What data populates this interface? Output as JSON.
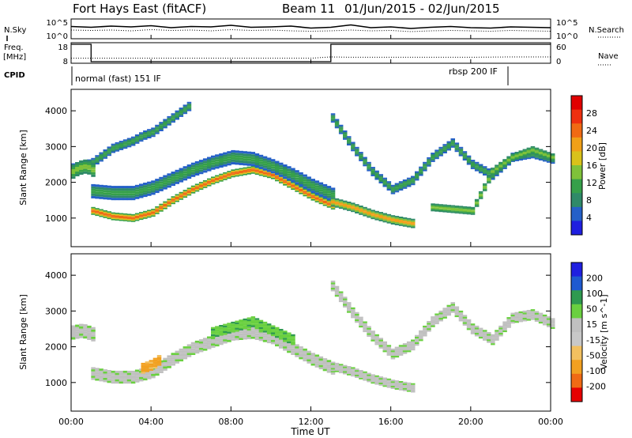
{
  "header": {
    "station": "Fort Hays East (fitACF)",
    "beam": "Beam 11",
    "date_range": "01/Jun/2015 - 02/Jun/2015"
  },
  "colors": {
    "power_scale": [
      "#1f1fe0",
      "#2560c8",
      "#2f8a68",
      "#36a04a",
      "#7fc23a",
      "#d9c21a",
      "#f0a018",
      "#f06a14",
      "#ee3010",
      "#e00000"
    ],
    "velocity_scale": [
      "#e60000",
      "#f06a14",
      "#f2a020",
      "#f2c060",
      "#c8c8c8",
      "#c0c0c0",
      "#6ad040",
      "#2f9a50",
      "#1f5ad0",
      "#1f1fe0"
    ]
  },
  "chart_data": [
    {
      "type": "line",
      "panel": "noise",
      "series": [
        {
          "name": "N.Sky",
          "style": "solid",
          "values": [
            3.1,
            2.9,
            3.2,
            3.0,
            3.3,
            2.8,
            3.1,
            3.0,
            3.4,
            2.9,
            3.0,
            3.2,
            2.7,
            2.9,
            3.5,
            2.8,
            3.0,
            2.6,
            2.9,
            3.1,
            2.8,
            2.7,
            3.0,
            2.9,
            2.8
          ]
        },
        {
          "name": "N.Search",
          "style": "dotted",
          "values": [
            2.2,
            2.1,
            2.2,
            2.0,
            2.3,
            2.1,
            2.2,
            2.0,
            2.3,
            2.1,
            2.2,
            2.0,
            1.9,
            2.0,
            2.2,
            2.0,
            2.1,
            1.8,
            2.0,
            2.1,
            2.0,
            1.9,
            2.1,
            2.0,
            1.9
          ]
        }
      ],
      "x_hours": [
        0,
        1,
        2,
        3,
        4,
        5,
        6,
        7,
        8,
        9,
        10,
        11,
        12,
        13,
        14,
        15,
        16,
        17,
        18,
        19,
        20,
        21,
        22,
        23,
        24
      ],
      "yticks_left": [
        "10^5",
        "10^0"
      ],
      "yticks_right": [
        "10^5",
        "10^0"
      ],
      "labels": {
        "left": "N.Sky",
        "right": "N.Search"
      }
    },
    {
      "type": "line",
      "panel": "frequency",
      "series": [
        {
          "name": "Freq. [MHz]",
          "style": "solid",
          "x_hours": [
            0,
            1.0,
            1.0,
            13.0,
            13.0,
            24
          ],
          "values": [
            18,
            18,
            8,
            8,
            18,
            18
          ]
        },
        {
          "name": "Nave",
          "style": "dotted",
          "x_hours": [
            0,
            2,
            4,
            6,
            8,
            10,
            12,
            13,
            14,
            16,
            18,
            20,
            22,
            24
          ],
          "values": [
            16,
            16,
            16,
            16,
            16,
            16,
            16,
            20,
            19,
            19,
            19,
            19,
            20,
            20
          ]
        }
      ],
      "labels": {
        "freq": "Freq.",
        "freq_unit": "[MHz]",
        "nave": "Nave",
        "cpid": "CPID"
      },
      "yticks_left": [
        "18",
        "8"
      ],
      "yticks_right": [
        "60",
        "0"
      ]
    },
    {
      "type": "table",
      "panel": "cpid",
      "modes": [
        {
          "start": 0,
          "end": 22.0,
          "label": "normal (fast) 151 IF"
        },
        {
          "start": 22.0,
          "end": 24,
          "label": "rbsp 200 IF"
        }
      ]
    },
    {
      "type": "heatmap",
      "panel": "power",
      "ylabel": "Slant Range [km]",
      "ylim": [
        200,
        4600
      ],
      "yticks": [
        1000,
        2000,
        3000,
        4000
      ],
      "colorbar_label": "Power [dB]",
      "colorbar_ticks": [
        4,
        8,
        12,
        16,
        20,
        24,
        28
      ],
      "bands": [
        {
          "t": [
            1,
            2,
            3,
            4,
            5,
            6,
            7,
            8,
            9,
            10,
            11,
            12,
            13
          ],
          "r": [
            1200,
            1050,
            1000,
            1150,
            1500,
            1800,
            2050,
            2250,
            2350,
            2200,
            1900,
            1600,
            1350
          ],
          "w": 220,
          "lvl": 26
        },
        {
          "t": [
            1,
            2,
            3,
            4,
            5,
            6,
            7,
            8,
            9,
            10,
            11,
            12,
            13
          ],
          "r": [
            1750,
            1700,
            1700,
            1850,
            2100,
            2350,
            2550,
            2700,
            2650,
            2450,
            2200,
            1900,
            1650
          ],
          "w": 400,
          "lvl": 12
        },
        {
          "t": [
            0,
            0.5,
            1,
            1.5,
            2,
            2.5,
            3,
            3.5,
            4,
            4.5,
            5,
            6
          ],
          "r": [
            2400,
            2450,
            2550,
            2750,
            2950,
            3050,
            3150,
            3300,
            3400,
            3600,
            3800,
            4200
          ],
          "w": 260,
          "lvl": 10
        },
        {
          "t": [
            0,
            0.3,
            0.7,
            1.0
          ],
          "r": [
            2300,
            2400,
            2450,
            2350
          ],
          "w": 400,
          "lvl": 16
        },
        {
          "t": [
            13,
            14,
            15,
            16,
            17
          ],
          "r": [
            1450,
            1300,
            1100,
            950,
            850
          ],
          "w": 260,
          "lvl": 20
        },
        {
          "t": [
            13,
            14,
            15,
            16,
            17,
            18,
            19,
            20,
            21,
            22,
            23,
            24
          ],
          "r": [
            3800,
            3000,
            2300,
            1800,
            2050,
            2700,
            3100,
            2500,
            2200,
            2700,
            2800,
            2650
          ],
          "w": 260,
          "lvl": 10
        },
        {
          "t": [
            18,
            19,
            20,
            21,
            22,
            23,
            24
          ],
          "r": [
            1300,
            1250,
            1200,
            2300,
            2700,
            2900,
            2700
          ],
          "w": 220,
          "lvl": 16
        }
      ]
    },
    {
      "type": "heatmap",
      "panel": "velocity",
      "ylabel": "Slant Range [km]",
      "xlabel": "Time UT",
      "ylim": [
        200,
        4600
      ],
      "yticks": [
        1000,
        2000,
        3000,
        4000
      ],
      "xticks": [
        "00:00",
        "04:00",
        "08:00",
        "12:00",
        "16:00",
        "20:00",
        "00:00"
      ],
      "colorbar_label": "Velocity [m s^-1]",
      "colorbar_ticks": [
        200,
        100,
        50,
        15,
        -15,
        -50,
        -100,
        -200
      ],
      "bands": [
        {
          "t": [
            1,
            2,
            3,
            4,
            5,
            6,
            7,
            8,
            9,
            10,
            11,
            12,
            13
          ],
          "r": [
            1250,
            1150,
            1150,
            1300,
            1650,
            1950,
            2150,
            2350,
            2400,
            2250,
            1950,
            1650,
            1400
          ],
          "w": 360,
          "lvl": 5
        },
        {
          "t": [
            3.5,
            4,
            4.5
          ],
          "r": [
            1400,
            1500,
            1700
          ],
          "w": 300,
          "lvl": 2
        },
        {
          "t": [
            7,
            8,
            9,
            10,
            11
          ],
          "r": [
            2400,
            2550,
            2700,
            2450,
            2200
          ],
          "w": 300,
          "lvl": 6
        },
        {
          "t": [
            0,
            0.5,
            1.0
          ],
          "r": [
            2400,
            2450,
            2350
          ],
          "w": 400,
          "lvl": 5
        },
        {
          "t": [
            13,
            14,
            15,
            16,
            17,
            18,
            19,
            20,
            21,
            22,
            23,
            24
          ],
          "r": [
            3700,
            2950,
            2300,
            1800,
            2050,
            2700,
            3100,
            2500,
            2200,
            2800,
            2900,
            2650
          ],
          "w": 300,
          "lvl": 5
        },
        {
          "t": [
            13,
            14,
            15,
            16,
            17
          ],
          "r": [
            1450,
            1300,
            1100,
            950,
            850
          ],
          "w": 260,
          "lvl": 5
        }
      ]
    }
  ]
}
